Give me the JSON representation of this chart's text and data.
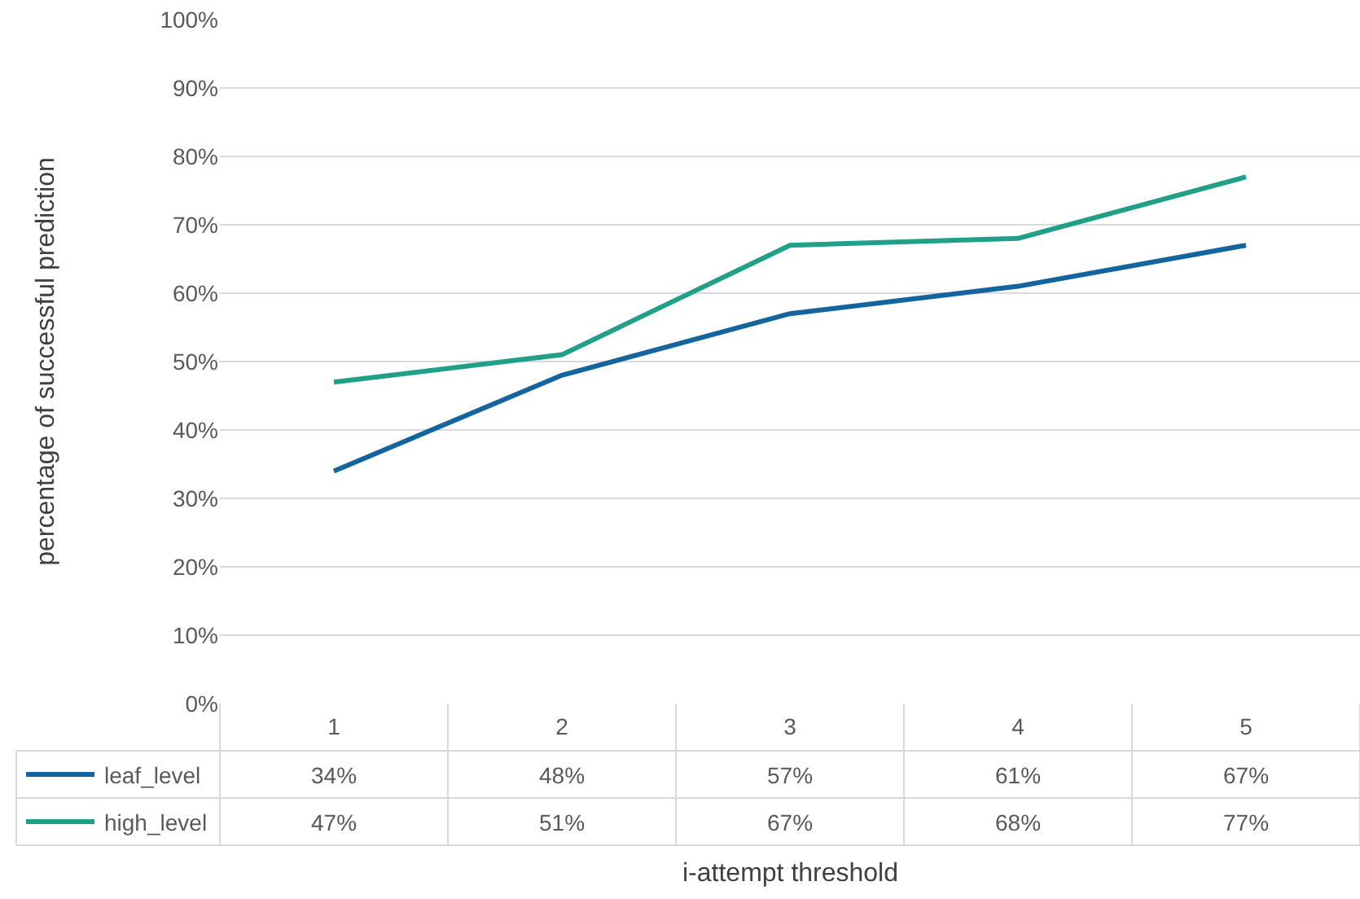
{
  "chart_data": {
    "type": "line",
    "xlabel": "i-attempt threshold",
    "ylabel": "percentage of successful prediction",
    "categories": [
      "1",
      "2",
      "3",
      "4",
      "5"
    ],
    "series": [
      {
        "name": "leaf_level",
        "color": "#14649e",
        "values": [
          34,
          48,
          57,
          61,
          67
        ],
        "value_labels": [
          "34%",
          "48%",
          "57%",
          "61%",
          "67%"
        ]
      },
      {
        "name": "high_level",
        "color": "#21a089",
        "values": [
          47,
          51,
          67,
          68,
          77
        ],
        "value_labels": [
          "47%",
          "51%",
          "67%",
          "68%",
          "77%"
        ]
      }
    ],
    "ylim": [
      0,
      100
    ],
    "yticks": [
      {
        "value": 0,
        "label": "0%"
      },
      {
        "value": 10,
        "label": "10%"
      },
      {
        "value": 20,
        "label": "20%"
      },
      {
        "value": 30,
        "label": "30%"
      },
      {
        "value": 40,
        "label": "40%"
      },
      {
        "value": 50,
        "label": "50%"
      },
      {
        "value": 60,
        "label": "60%"
      },
      {
        "value": 70,
        "label": "70%"
      },
      {
        "value": 80,
        "label": "80%"
      },
      {
        "value": 90,
        "label": "90%"
      },
      {
        "value": 100,
        "label": "100%"
      }
    ],
    "grid": "y",
    "legend": "bottom left",
    "marker": "none",
    "line_style": "solid"
  }
}
